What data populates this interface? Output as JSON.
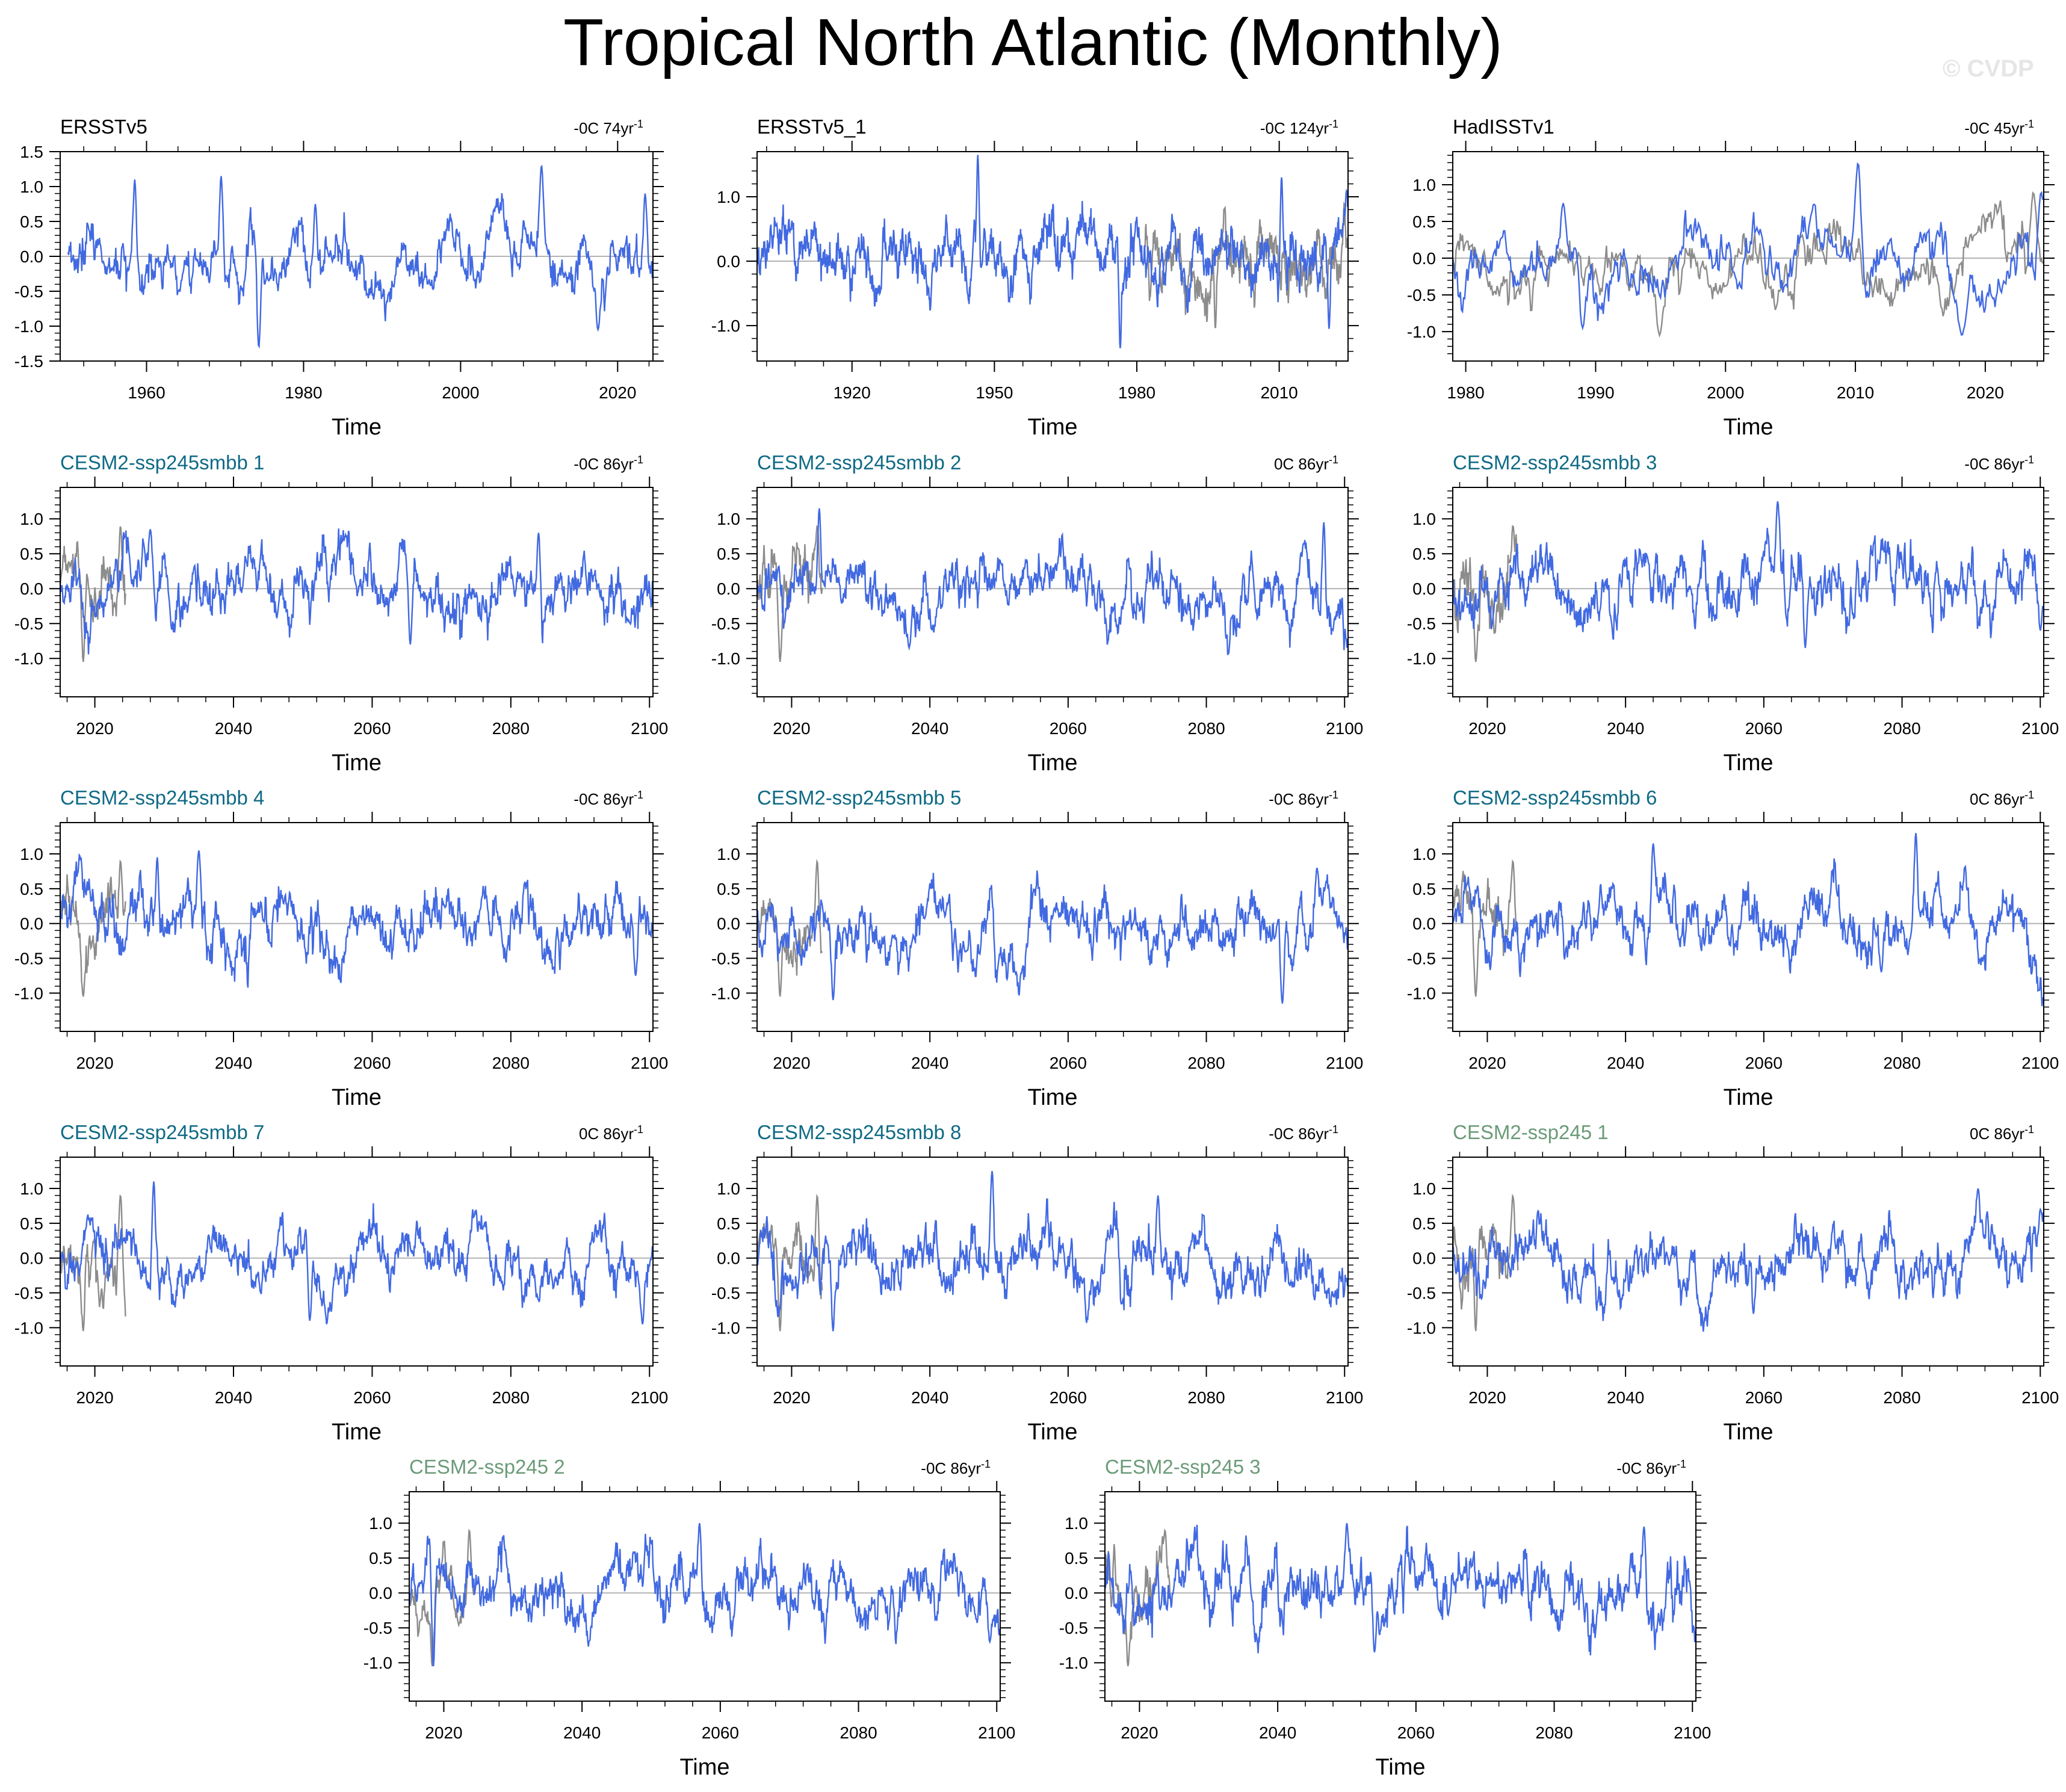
{
  "figure": {
    "title": "Tropical North Atlantic (Monthly)",
    "watermark": "© CVDP",
    "colors": {
      "series": "#4169e1",
      "observed_overlay": "#8c8c8c",
      "model_label_smbb": "#0f6a85",
      "model_label_ssp245": "#6b9b78",
      "obs_label": "#000000",
      "zero_line": "#b3b3b3"
    }
  },
  "chart_data": [
    {
      "type": "line",
      "title": "ERSSTv5",
      "title_style": "obs",
      "trend_label": "-0C 74yr",
      "trend_unit_sup": "-1",
      "xlabel": "Time",
      "x_range": [
        1949,
        2024.5
      ],
      "ylim": [
        -1.5,
        1.5
      ],
      "yticks": [
        1.5,
        1.0,
        0.5,
        0.0,
        -0.5,
        -1.0,
        -1.5
      ],
      "ytick_labels": [
        "1.5",
        "1.0",
        "0.5",
        "0.0",
        "-0.5",
        "-1.0",
        "-1.5"
      ],
      "xticks": [
        1960,
        1980,
        2000,
        2020
      ],
      "xtick_labels": [
        "1960",
        "1980",
        "2000",
        "2020"
      ],
      "series": [
        {
          "name": "ERSSTv5",
          "color": "#4169e1",
          "start": 1950,
          "end": 2024.5,
          "peaks": [
            [
              1958.5,
              1.1
            ],
            [
              1969.5,
              1.15
            ],
            [
              1974.3,
              -1.3
            ],
            [
              1981.5,
              0.75
            ],
            [
              2010.3,
              1.3
            ],
            [
              2017.5,
              -1.05
            ],
            [
              2023.5,
              0.9
            ]
          ]
        }
      ],
      "overlay": null
    },
    {
      "type": "line",
      "title": "ERSSTv5_1",
      "title_style": "obs",
      "trend_label": "-0C 124yr",
      "trend_unit_sup": "-1",
      "xlabel": "Time",
      "x_range": [
        1900,
        2024.5
      ],
      "ylim": [
        -1.55,
        1.7
      ],
      "yticks": [
        1.0,
        0.0,
        -1.0
      ],
      "ytick_labels": [
        "1.0",
        "0.0",
        "-1.0"
      ],
      "xticks": [
        1920,
        1950,
        1980,
        2010
      ],
      "xtick_labels": [
        "1920",
        "1950",
        "1980",
        "2010"
      ],
      "series": [
        {
          "name": "ERSSTv5_1",
          "color": "#4169e1",
          "start": 1900,
          "end": 2024.5,
          "peaks": [
            [
              1946.5,
              1.65
            ],
            [
              1976.5,
              -1.35
            ],
            [
              2010.5,
              1.3
            ],
            [
              2020.5,
              -1.05
            ],
            [
              2024.2,
              1.1
            ]
          ]
        }
      ],
      "overlay": {
        "color": "#8c8c8c",
        "start": 1981.5,
        "end": 2024.5
      }
    },
    {
      "type": "line",
      "title": "HadISSTv1",
      "title_style": "obs",
      "trend_label": "-0C 45yr",
      "trend_unit_sup": "-1",
      "xlabel": "Time",
      "x_range": [
        1979,
        2024.5
      ],
      "ylim": [
        -1.4,
        1.45
      ],
      "yticks": [
        1.0,
        0.5,
        0.0,
        -0.5,
        -1.0
      ],
      "ytick_labels": [
        "1.0",
        "0.5",
        "0.0",
        "-0.5",
        "-1.0"
      ],
      "xticks": [
        1980,
        1990,
        2000,
        2010,
        2020
      ],
      "xtick_labels": [
        "1980",
        "1990",
        "2000",
        "2010",
        "2020"
      ],
      "series": [
        {
          "name": "HadISSTv1",
          "color": "#4169e1",
          "start": 1979,
          "end": 2024.5,
          "peaks": [
            [
              1987.5,
              0.75
            ],
            [
              1989,
              -0.95
            ],
            [
              2010.2,
              1.3
            ],
            [
              2018.2,
              -1.05
            ],
            [
              2024.3,
              0.9
            ]
          ]
        }
      ],
      "overlay": {
        "color": "#8c8c8c",
        "start": 1979,
        "end": 2024.5
      }
    },
    {
      "type": "line",
      "title": "CESM2-ssp245smbb 1",
      "title_style": "smbb",
      "trend_label": "-0C 86yr",
      "trend_unit_sup": "-1",
      "xlabel": "Time",
      "x_range": [
        2015,
        2100.5
      ],
      "ylim": [
        -1.55,
        1.45
      ],
      "yticks": [
        1.0,
        0.5,
        0.0,
        -0.5,
        -1.0
      ],
      "ytick_labels": [
        "1.0",
        "0.5",
        "0.0",
        "-0.5",
        "-1.0"
      ],
      "xticks": [
        2020,
        2040,
        2060,
        2080,
        2100
      ],
      "xtick_labels": [
        "2020",
        "2040",
        "2060",
        "2080",
        "2100"
      ],
      "series": [
        {
          "name": "CESM2-ssp245smbb 1",
          "color": "#4169e1",
          "start": 2015,
          "end": 2100.5,
          "peaks": [
            [
              2028,
              0.85
            ],
            [
              2065.5,
              -0.8
            ],
            [
              2084,
              0.8
            ]
          ]
        }
      ],
      "overlay": {
        "color": "#8c8c8c",
        "start": 2015,
        "end": 2024.5
      }
    },
    {
      "type": "line",
      "title": "CESM2-ssp245smbb 2",
      "title_style": "smbb",
      "trend_label": "0C 86yr",
      "trend_unit_sup": "-1",
      "xlabel": "Time",
      "x_range": [
        2015,
        2100.5
      ],
      "ylim": [
        -1.55,
        1.45
      ],
      "yticks": [
        1.0,
        0.5,
        0.0,
        -0.5,
        -1.0
      ],
      "ytick_labels": [
        "1.0",
        "0.5",
        "0.0",
        "-0.5",
        "-1.0"
      ],
      "xticks": [
        2020,
        2040,
        2060,
        2080,
        2100
      ],
      "xtick_labels": [
        "2020",
        "2040",
        "2060",
        "2080",
        "2100"
      ],
      "series": [
        {
          "name": "CESM2-ssp245smbb 2",
          "color": "#4169e1",
          "start": 2015,
          "end": 2100.5,
          "peaks": [
            [
              2024,
              1.15
            ],
            [
              2037,
              -0.85
            ],
            [
              2097,
              0.95
            ]
          ]
        }
      ],
      "overlay": {
        "color": "#8c8c8c",
        "start": 2015,
        "end": 2024.5
      }
    },
    {
      "type": "line",
      "title": "CESM2-ssp245smbb 3",
      "title_style": "smbb",
      "trend_label": "-0C 86yr",
      "trend_unit_sup": "-1",
      "xlabel": "Time",
      "x_range": [
        2015,
        2100.5
      ],
      "ylim": [
        -1.55,
        1.45
      ],
      "yticks": [
        1.0,
        0.5,
        0.0,
        -0.5,
        -1.0
      ],
      "ytick_labels": [
        "1.0",
        "0.5",
        "0.0",
        "-0.5",
        "-1.0"
      ],
      "xticks": [
        2020,
        2040,
        2060,
        2080,
        2100
      ],
      "xtick_labels": [
        "2020",
        "2040",
        "2060",
        "2080",
        "2100"
      ],
      "series": [
        {
          "name": "CESM2-ssp245smbb 3",
          "color": "#4169e1",
          "start": 2015,
          "end": 2100.5,
          "peaks": [
            [
              2062,
              1.25
            ],
            [
              2066,
              -0.85
            ],
            [
              2100,
              -0.6
            ]
          ]
        }
      ],
      "overlay": {
        "color": "#8c8c8c",
        "start": 2015,
        "end": 2024.5
      }
    },
    {
      "type": "line",
      "title": "CESM2-ssp245smbb 4",
      "title_style": "smbb",
      "trend_label": "-0C 86yr",
      "trend_unit_sup": "-1",
      "xlabel": "Time",
      "x_range": [
        2015,
        2100.5
      ],
      "ylim": [
        -1.55,
        1.45
      ],
      "yticks": [
        1.0,
        0.5,
        0.0,
        -0.5,
        -1.0
      ],
      "ytick_labels": [
        "1.0",
        "0.5",
        "0.0",
        "-0.5",
        "-1.0"
      ],
      "xticks": [
        2020,
        2040,
        2060,
        2080,
        2100
      ],
      "xtick_labels": [
        "2020",
        "2040",
        "2060",
        "2080",
        "2100"
      ],
      "series": [
        {
          "name": "CESM2-ssp245smbb 4",
          "color": "#4169e1",
          "start": 2015,
          "end": 2100.5,
          "peaks": [
            [
              2035,
              1.05
            ],
            [
              2029,
              0.95
            ],
            [
              2098,
              -0.75
            ]
          ]
        }
      ],
      "overlay": {
        "color": "#8c8c8c",
        "start": 2015,
        "end": 2024.5
      }
    },
    {
      "type": "line",
      "title": "CESM2-ssp245smbb 5",
      "title_style": "smbb",
      "trend_label": "-0C 86yr",
      "trend_unit_sup": "-1",
      "xlabel": "Time",
      "x_range": [
        2015,
        2100.5
      ],
      "ylim": [
        -1.55,
        1.45
      ],
      "yticks": [
        1.0,
        0.5,
        0.0,
        -0.5,
        -1.0
      ],
      "ytick_labels": [
        "1.0",
        "0.5",
        "0.0",
        "-0.5",
        "-1.0"
      ],
      "xticks": [
        2020,
        2040,
        2060,
        2080,
        2100
      ],
      "xtick_labels": [
        "2020",
        "2040",
        "2060",
        "2080",
        "2100"
      ],
      "series": [
        {
          "name": "CESM2-ssp245smbb 5",
          "color": "#4169e1",
          "start": 2015,
          "end": 2100.5,
          "peaks": [
            [
              2026,
              -1.1
            ],
            [
              2091,
              -1.15
            ],
            [
              2096,
              0.8
            ]
          ]
        }
      ],
      "overlay": {
        "color": "#8c8c8c",
        "start": 2015,
        "end": 2024.5
      }
    },
    {
      "type": "line",
      "title": "CESM2-ssp245smbb 6",
      "title_style": "smbb",
      "trend_label": "0C 86yr",
      "trend_unit_sup": "-1",
      "xlabel": "Time",
      "x_range": [
        2015,
        2100.5
      ],
      "ylim": [
        -1.55,
        1.45
      ],
      "yticks": [
        1.0,
        0.5,
        0.0,
        -0.5,
        -1.0
      ],
      "ytick_labels": [
        "1.0",
        "0.5",
        "0.0",
        "-0.5",
        "-1.0"
      ],
      "xticks": [
        2020,
        2040,
        2060,
        2080,
        2100
      ],
      "xtick_labels": [
        "2020",
        "2040",
        "2060",
        "2080",
        "2100"
      ],
      "series": [
        {
          "name": "CESM2-ssp245smbb 6",
          "color": "#4169e1",
          "start": 2015,
          "end": 2100.5,
          "peaks": [
            [
              2044,
              1.15
            ],
            [
              2082,
              1.3
            ],
            [
              2077,
              -0.7
            ]
          ]
        }
      ],
      "overlay": {
        "color": "#8c8c8c",
        "start": 2015,
        "end": 2024.5
      }
    },
    {
      "type": "line",
      "title": "CESM2-ssp245smbb 7",
      "title_style": "smbb",
      "trend_label": "0C 86yr",
      "trend_unit_sup": "-1",
      "xlabel": "Time",
      "x_range": [
        2015,
        2100.5
      ],
      "ylim": [
        -1.55,
        1.45
      ],
      "yticks": [
        1.0,
        0.5,
        0.0,
        -0.5,
        -1.0
      ],
      "ytick_labels": [
        "1.0",
        "0.5",
        "0.0",
        "-0.5",
        "-1.0"
      ],
      "xticks": [
        2020,
        2040,
        2060,
        2080,
        2100
      ],
      "xtick_labels": [
        "2020",
        "2040",
        "2060",
        "2080",
        "2100"
      ],
      "series": [
        {
          "name": "CESM2-ssp245smbb 7",
          "color": "#4169e1",
          "start": 2015,
          "end": 2100.5,
          "peaks": [
            [
              2028.5,
              1.1
            ],
            [
              2051,
              -0.9
            ],
            [
              2099,
              -0.95
            ]
          ]
        }
      ],
      "overlay": {
        "color": "#8c8c8c",
        "start": 2015,
        "end": 2024.5
      }
    },
    {
      "type": "line",
      "title": "CESM2-ssp245smbb 8",
      "title_style": "smbb",
      "trend_label": "-0C 86yr",
      "trend_unit_sup": "-1",
      "xlabel": "Time",
      "x_range": [
        2015,
        2100.5
      ],
      "ylim": [
        -1.55,
        1.45
      ],
      "yticks": [
        1.0,
        0.5,
        0.0,
        -0.5,
        -1.0
      ],
      "ytick_labels": [
        "1.0",
        "0.5",
        "0.0",
        "-0.5",
        "-1.0"
      ],
      "xticks": [
        2020,
        2040,
        2060,
        2080,
        2100
      ],
      "xtick_labels": [
        "2020",
        "2040",
        "2060",
        "2080",
        "2100"
      ],
      "series": [
        {
          "name": "CESM2-ssp245smbb 8",
          "color": "#4169e1",
          "start": 2015,
          "end": 2100.5,
          "peaks": [
            [
              2049,
              1.25
            ],
            [
              2026,
              -1.05
            ],
            [
              2073,
              0.9
            ]
          ]
        }
      ],
      "overlay": {
        "color": "#8c8c8c",
        "start": 2015,
        "end": 2024.5
      }
    },
    {
      "type": "line",
      "title": "CESM2-ssp245 1",
      "title_style": "ssp245",
      "trend_label": "0C 86yr",
      "trend_unit_sup": "-1",
      "xlabel": "Time",
      "x_range": [
        2015,
        2100.5
      ],
      "ylim": [
        -1.55,
        1.45
      ],
      "yticks": [
        1.0,
        0.5,
        0.0,
        -0.5,
        -1.0
      ],
      "ytick_labels": [
        "1.0",
        "0.5",
        "0.0",
        "-0.5",
        "-1.0"
      ],
      "xticks": [
        2020,
        2040,
        2060,
        2080,
        2100
      ],
      "xtick_labels": [
        "2020",
        "2040",
        "2060",
        "2080",
        "2100"
      ],
      "series": [
        {
          "name": "CESM2-ssp245 1",
          "color": "#4169e1",
          "start": 2015,
          "end": 2100.5,
          "peaks": [
            [
              2091,
              1.0
            ],
            [
              2058.5,
              -0.8
            ],
            [
              2100,
              0.7
            ]
          ]
        }
      ],
      "overlay": {
        "color": "#8c8c8c",
        "start": 2015,
        "end": 2024.5
      }
    },
    {
      "type": "line",
      "title": "CESM2-ssp245 2",
      "title_style": "ssp245",
      "trend_label": "-0C 86yr",
      "trend_unit_sup": "-1",
      "xlabel": "Time",
      "x_range": [
        2015,
        2100.5
      ],
      "ylim": [
        -1.55,
        1.45
      ],
      "yticks": [
        1.0,
        0.5,
        0.0,
        -0.5,
        -1.0
      ],
      "ytick_labels": [
        "1.0",
        "0.5",
        "0.0",
        "-0.5",
        "-1.0"
      ],
      "xticks": [
        2020,
        2040,
        2060,
        2080,
        2100
      ],
      "xtick_labels": [
        "2020",
        "2040",
        "2060",
        "2080",
        "2100"
      ],
      "series": [
        {
          "name": "CESM2-ssp245 2",
          "color": "#4169e1",
          "start": 2015,
          "end": 2100.5,
          "peaks": [
            [
              2057,
              1.0
            ],
            [
              2018.5,
              -1.05
            ],
            [
              2099,
              -0.7
            ]
          ]
        }
      ],
      "overlay": {
        "color": "#8c8c8c",
        "start": 2015,
        "end": 2024.5
      }
    },
    {
      "type": "line",
      "title": "CESM2-ssp245 3",
      "title_style": "ssp245",
      "trend_label": "-0C 86yr",
      "trend_unit_sup": "-1",
      "xlabel": "Time",
      "x_range": [
        2015,
        2100.5
      ],
      "ylim": [
        -1.55,
        1.45
      ],
      "yticks": [
        1.0,
        0.5,
        0.0,
        -0.5,
        -1.0
      ],
      "ytick_labels": [
        "1.0",
        "0.5",
        "0.0",
        "-0.5",
        "-1.0"
      ],
      "xticks": [
        2020,
        2040,
        2060,
        2080,
        2100
      ],
      "xtick_labels": [
        "2020",
        "2040",
        "2060",
        "2080",
        "2100"
      ],
      "series": [
        {
          "name": "CESM2-ssp245 3",
          "color": "#4169e1",
          "start": 2015,
          "end": 2100.5,
          "peaks": [
            [
              2050,
              1.0
            ],
            [
              2093,
              0.95
            ],
            [
              2054,
              -0.85
            ]
          ]
        }
      ],
      "overlay": {
        "color": "#8c8c8c",
        "start": 2015,
        "end": 2024.5
      }
    }
  ]
}
